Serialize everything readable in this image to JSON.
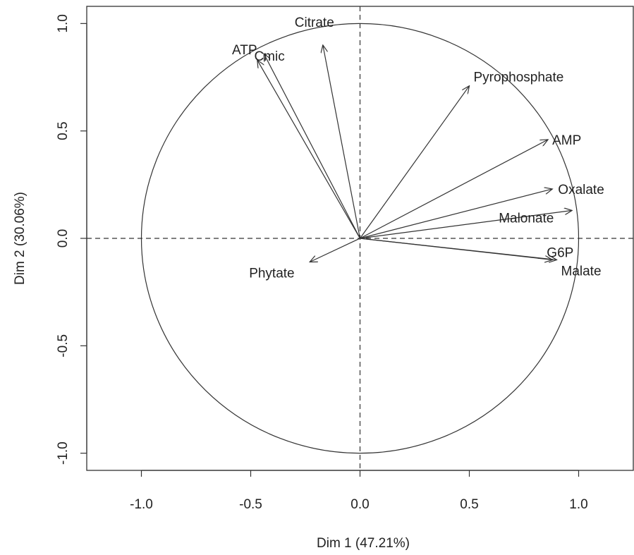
{
  "chart_data": {
    "type": "scatter",
    "subtype": "pca-correlation-circle",
    "title": "",
    "xlabel": "Dim 1 (47.21%)",
    "ylabel": "Dim 2 (30.06%)",
    "xlim": [
      -1.25,
      1.25
    ],
    "ylim": [
      -1.08,
      1.08
    ],
    "x_ticks": [
      -1.0,
      -0.5,
      0.0,
      0.5,
      1.0
    ],
    "x_tick_labels": [
      "-1.0",
      "-0.5",
      "0.0",
      "0.5",
      "1.0"
    ],
    "y_ticks": [
      -1.0,
      -0.5,
      0.0,
      0.5,
      1.0
    ],
    "y_tick_labels": [
      "-1.0",
      "-0.5",
      "0.0",
      "0.5",
      "1.0"
    ],
    "grid": false,
    "reference_lines": {
      "x": 0,
      "y": 0,
      "style": "dashed"
    },
    "unit_circle": true,
    "colors": {
      "line": "#333333",
      "text": "#222222",
      "background": "#ffffff"
    },
    "variables": [
      {
        "label": "ATP",
        "x": -0.47,
        "y": 0.83
      },
      {
        "label": "Cmic",
        "x": -0.44,
        "y": 0.86
      },
      {
        "label": "Citrate",
        "x": -0.17,
        "y": 0.9
      },
      {
        "label": "Pyrophosphate",
        "x": 0.5,
        "y": 0.71
      },
      {
        "label": "AMP",
        "x": 0.86,
        "y": 0.46
      },
      {
        "label": "Oxalate",
        "x": 0.88,
        "y": 0.23
      },
      {
        "label": "Malonate",
        "x": 0.97,
        "y": 0.13
      },
      {
        "label": "G6P",
        "x": 0.88,
        "y": -0.1
      },
      {
        "label": "Malate",
        "x": 0.9,
        "y": -0.1
      },
      {
        "label": "Phytate",
        "x": -0.23,
        "y": -0.11
      }
    ]
  }
}
